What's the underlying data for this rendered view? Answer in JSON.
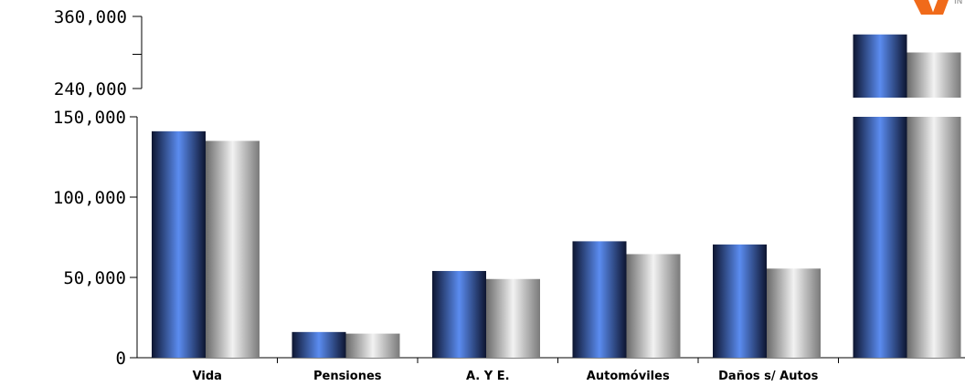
{
  "chart_data": {
    "type": "bar",
    "categories": [
      "Vida",
      "Pensiones",
      "A. Y E.",
      "Automóviles",
      "Daños s/ Autos",
      ""
    ],
    "series": [
      {
        "values": [
          141000,
          16000,
          54000,
          72500,
          70500,
          330000
        ]
      },
      {
        "values": [
          135000,
          15000,
          49000,
          64500,
          55500,
          300000
        ]
      }
    ],
    "lower_axis": {
      "ticks": [
        "0",
        "50,000",
        "100,000",
        "150,000"
      ],
      "tick_values": [
        0,
        50000,
        100000,
        150000
      ],
      "ylim": [
        0,
        150000
      ]
    },
    "upper_axis": {
      "ticks": [
        "240,000",
        "360,000"
      ],
      "tick_values": [
        240000,
        360000
      ],
      "ylim": [
        240000,
        360000
      ]
    },
    "broken_axis": true,
    "colors": {
      "series1_dark": "#0d1530",
      "series1_light": "#5b8cf0",
      "series2_dark": "#6a6a6a",
      "series2_light": "#f2f2f2",
      "logo": "#f06a1a"
    }
  },
  "logo": {
    "text": "IN"
  }
}
